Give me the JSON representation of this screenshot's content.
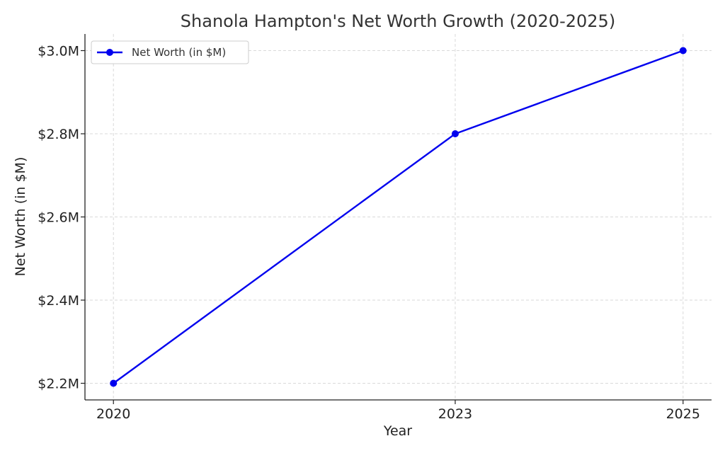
{
  "chart_data": {
    "type": "line",
    "title": "Shanola Hampton's Net Worth Growth (2020-2025)",
    "xlabel": "Year",
    "ylabel": "Net Worth (in $M)",
    "x": [
      2020,
      2023,
      2025
    ],
    "x_tick_labels": [
      "2020",
      "2023",
      "2025"
    ],
    "xlim": [
      2019.75,
      2025.25
    ],
    "ylim": [
      2.16,
      3.04
    ],
    "y_ticks": [
      2.2,
      2.4,
      2.6,
      2.8,
      3.0
    ],
    "y_tick_labels": [
      "$2.2M",
      "$2.4M",
      "$2.6M",
      "$2.8M",
      "$3.0M"
    ],
    "grid": true,
    "legend_position": "top-left",
    "series": [
      {
        "name": "Net Worth (in $M)",
        "values": [
          2.2,
          2.8,
          3.0
        ],
        "color": "#0000ee",
        "marker": "circle"
      }
    ]
  }
}
